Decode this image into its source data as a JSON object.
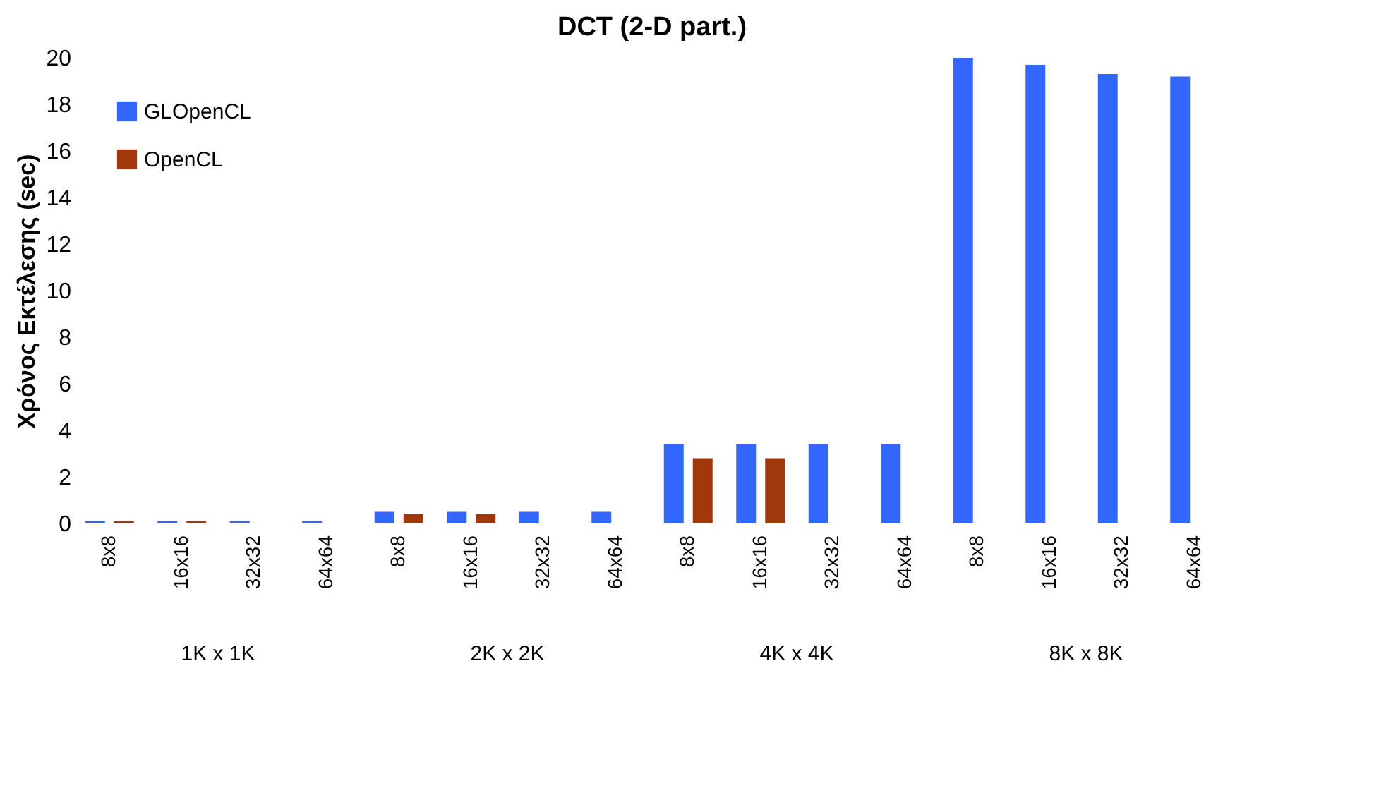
{
  "chart_data": {
    "type": "bar",
    "title": "DCT (2-D part.)",
    "ylabel": "Χρόνος Εκτέλεσης (sec)",
    "categories": [
      "8x8",
      "16x16",
      "32x32",
      "64x64",
      "8x8",
      "16x16",
      "32x32",
      "64x64",
      "8x8",
      "16x16",
      "32x32",
      "64x64",
      "8x8",
      "16x16",
      "32x32",
      "64x64"
    ],
    "annotations": [
      "1K x 1K",
      "2K x 2K",
      "4K x 4K",
      "8K x 8K"
    ],
    "series": [
      {
        "name": "GLOpenCL",
        "color": "#3366ff",
        "values": [
          0.1,
          0.1,
          0.1,
          0.1,
          0.5,
          0.5,
          0.5,
          0.5,
          3.4,
          3.4,
          3.4,
          3.4,
          20.0,
          19.7,
          19.3,
          19.2
        ]
      },
      {
        "name": "OpenCL",
        "color": "#a0380c",
        "values": [
          0.1,
          0.1,
          null,
          null,
          0.4,
          0.4,
          null,
          null,
          2.8,
          2.8,
          null,
          null,
          null,
          null,
          null,
          null
        ]
      }
    ],
    "ylim": [
      0,
      20
    ],
    "yticks": [
      0,
      2,
      4,
      6,
      8,
      10,
      12,
      14,
      16,
      18,
      20
    ],
    "grid": false,
    "legend": "top left"
  }
}
